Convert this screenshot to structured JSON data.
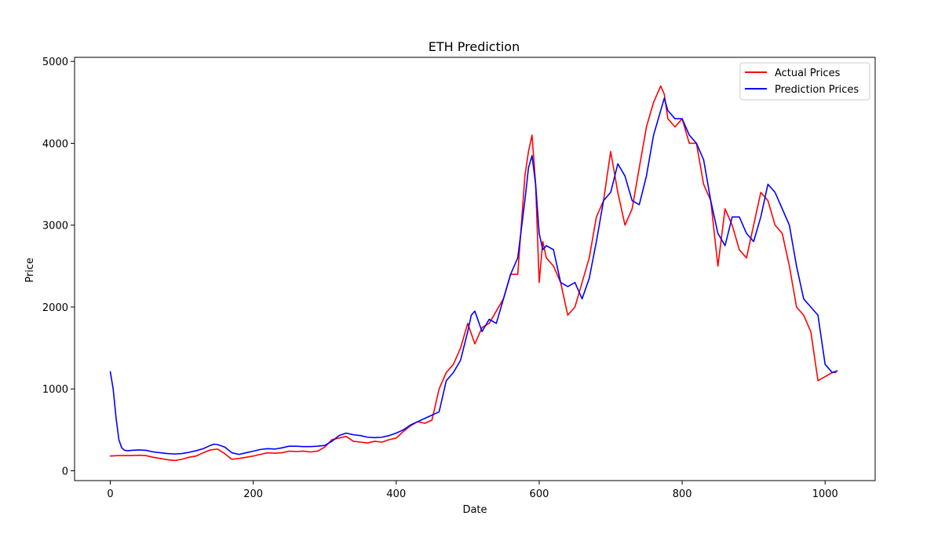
{
  "chart_data": {
    "type": "line",
    "title": "ETH Prediction",
    "xlabel": "Date",
    "ylabel": "Price",
    "xlim": [
      -50,
      1070
    ],
    "ylim": [
      -120,
      5050
    ],
    "xticks": [
      0,
      200,
      400,
      600,
      800,
      1000
    ],
    "yticks": [
      0,
      1000,
      2000,
      3000,
      4000,
      5000
    ],
    "grid": false,
    "legend": "upper right",
    "series": [
      {
        "name": "Actual Prices",
        "color": "#ff0000",
        "x": [
          0,
          10,
          20,
          30,
          40,
          50,
          60,
          70,
          80,
          90,
          100,
          110,
          120,
          130,
          140,
          150,
          160,
          170,
          180,
          190,
          200,
          210,
          220,
          230,
          240,
          250,
          260,
          270,
          280,
          290,
          300,
          310,
          320,
          330,
          340,
          350,
          360,
          370,
          380,
          390,
          400,
          410,
          420,
          430,
          440,
          450,
          460,
          470,
          480,
          490,
          500,
          510,
          520,
          530,
          540,
          550,
          560,
          570,
          580,
          585,
          590,
          595,
          600,
          605,
          610,
          620,
          630,
          640,
          650,
          660,
          670,
          680,
          690,
          700,
          710,
          720,
          730,
          740,
          750,
          760,
          770,
          775,
          780,
          790,
          800,
          810,
          820,
          830,
          840,
          850,
          860,
          870,
          880,
          890,
          900,
          910,
          920,
          930,
          940,
          950,
          960,
          970,
          980,
          990,
          1000,
          1010,
          1015
        ],
        "y": [
          180,
          185,
          185,
          185,
          190,
          185,
          165,
          150,
          135,
          125,
          140,
          165,
          180,
          220,
          255,
          265,
          210,
          140,
          150,
          165,
          180,
          200,
          220,
          215,
          220,
          240,
          235,
          240,
          230,
          240,
          290,
          380,
          400,
          420,
          360,
          350,
          340,
          360,
          350,
          380,
          400,
          480,
          550,
          600,
          580,
          620,
          1000,
          1200,
          1300,
          1500,
          1800,
          1550,
          1750,
          1800,
          1950,
          2100,
          2400,
          2400,
          3600,
          3900,
          4100,
          3500,
          2300,
          2800,
          2600,
          2500,
          2300,
          1900,
          2000,
          2300,
          2600,
          3100,
          3300,
          3900,
          3400,
          3000,
          3200,
          3700,
          4200,
          4500,
          4700,
          4600,
          4300,
          4200,
          4300,
          4000,
          4000,
          3500,
          3300,
          2500,
          3200,
          3000,
          2700,
          2600,
          3000,
          3400,
          3300,
          3000,
          2900,
          2500,
          2000,
          1900,
          1700,
          1100,
          1150,
          1200,
          1200
        ]
      },
      {
        "name": "Prediction Prices",
        "color": "#0000ff",
        "x": [
          0,
          4,
          8,
          12,
          16,
          20,
          25,
          30,
          40,
          50,
          60,
          70,
          80,
          90,
          100,
          110,
          120,
          130,
          140,
          145,
          150,
          160,
          170,
          180,
          190,
          200,
          210,
          220,
          230,
          240,
          250,
          260,
          270,
          280,
          290,
          300,
          310,
          320,
          330,
          340,
          350,
          360,
          370,
          380,
          390,
          400,
          410,
          420,
          430,
          440,
          450,
          460,
          470,
          480,
          490,
          500,
          505,
          510,
          520,
          530,
          540,
          550,
          560,
          570,
          580,
          585,
          590,
          595,
          600,
          605,
          610,
          620,
          630,
          640,
          650,
          660,
          670,
          680,
          690,
          700,
          710,
          720,
          730,
          740,
          750,
          760,
          770,
          775,
          780,
          790,
          800,
          810,
          820,
          830,
          840,
          850,
          860,
          870,
          880,
          890,
          900,
          910,
          920,
          930,
          940,
          950,
          960,
          970,
          980,
          990,
          1000,
          1010,
          1017
        ],
        "y": [
          1210,
          1000,
          650,
          380,
          280,
          250,
          245,
          250,
          255,
          250,
          230,
          220,
          210,
          205,
          210,
          225,
          245,
          270,
          310,
          325,
          320,
          290,
          220,
          200,
          220,
          240,
          260,
          270,
          265,
          280,
          300,
          300,
          295,
          295,
          300,
          310,
          360,
          430,
          460,
          440,
          430,
          410,
          405,
          410,
          430,
          460,
          500,
          560,
          600,
          640,
          680,
          720,
          1100,
          1200,
          1350,
          1700,
          1900,
          1950,
          1700,
          1850,
          1800,
          2100,
          2400,
          2600,
          3300,
          3700,
          3850,
          3500,
          2900,
          2700,
          2750,
          2700,
          2300,
          2250,
          2300,
          2100,
          2350,
          2800,
          3300,
          3400,
          3750,
          3600,
          3300,
          3250,
          3600,
          4100,
          4400,
          4550,
          4400,
          4300,
          4300,
          4100,
          4000,
          3800,
          3300,
          2900,
          2750,
          3100,
          3100,
          2900,
          2800,
          3100,
          3500,
          3400,
          3200,
          3000,
          2500,
          2100,
          2000,
          1900,
          1300,
          1200,
          1220
        ]
      }
    ]
  }
}
